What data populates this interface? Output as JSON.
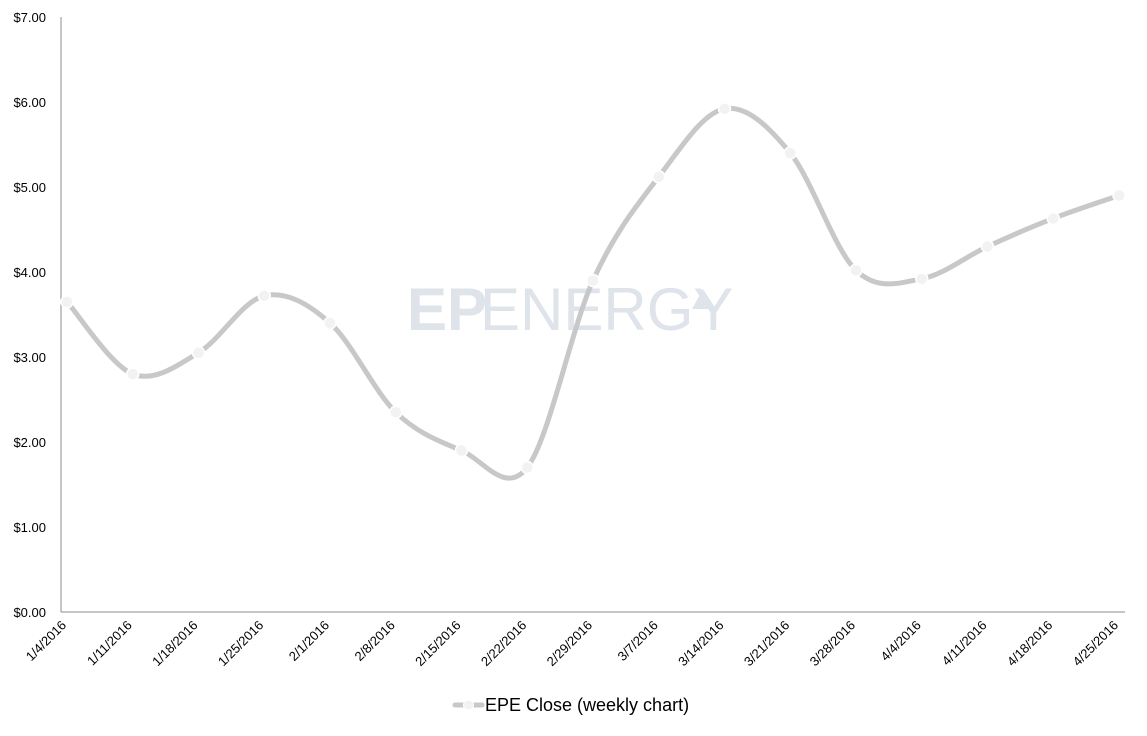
{
  "colors": {
    "line": "#c8c8c8",
    "marker_fill": "#f2f2f2",
    "marker_stroke": "#ffffff",
    "axis": "#8c8c8c",
    "text": "#000000",
    "watermark": "#dfe3ea"
  },
  "watermark": {
    "text_bold": "EP",
    "text_light": "ENERGY",
    "icon": "triangle-logo-icon"
  },
  "chart_data": {
    "type": "line",
    "title": "",
    "xlabel": "",
    "ylabel": "",
    "categories": [
      "1/4/2016",
      "1/11/2016",
      "1/18/2016",
      "1/25/2016",
      "2/1/2016",
      "2/8/2016",
      "2/15/2016",
      "2/22/2016",
      "2/29/2016",
      "3/7/2016",
      "3/14/2016",
      "3/21/2016",
      "3/28/2016",
      "4/4/2016",
      "4/11/2016",
      "4/18/2016",
      "4/25/2016"
    ],
    "series": [
      {
        "name": "EPE Close (weekly chart)",
        "values": [
          3.65,
          2.8,
          3.05,
          3.72,
          3.4,
          2.35,
          1.9,
          1.7,
          3.9,
          5.12,
          5.92,
          5.4,
          4.02,
          3.92,
          4.3,
          4.63,
          4.9
        ]
      }
    ],
    "ylim": [
      0,
      7
    ],
    "yticks": [
      0,
      1,
      2,
      3,
      4,
      5,
      6,
      7
    ],
    "ytick_labels": [
      "$0.00",
      "$1.00",
      "$2.00",
      "$3.00",
      "$4.00",
      "$5.00",
      "$6.00",
      "$7.00"
    ],
    "grid": false,
    "smooth": true,
    "legend_position": "bottom"
  }
}
